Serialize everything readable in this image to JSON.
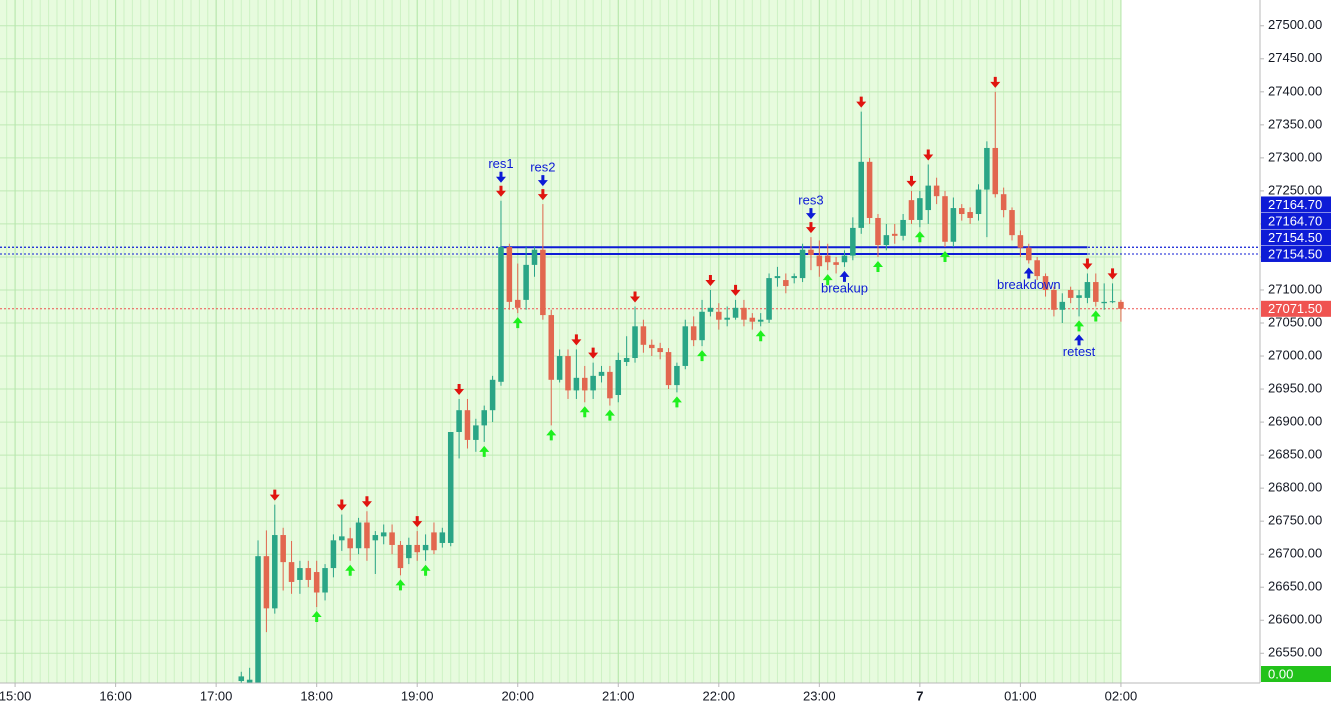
{
  "chart_data": {
    "type": "candlestick",
    "up_color": "#2aa586",
    "down_color": "#e2674f",
    "xlim": [
      -9,
      743
    ],
    "ylim": [
      26505,
      27539
    ],
    "xticks": [
      {
        "value": 0,
        "label": "15:00"
      },
      {
        "value": 60,
        "label": "16:00"
      },
      {
        "value": 120,
        "label": "17:00"
      },
      {
        "value": 180,
        "label": "18:00"
      },
      {
        "value": 240,
        "label": "19:00"
      },
      {
        "value": 300,
        "label": "20:00"
      },
      {
        "value": 360,
        "label": "21:00"
      },
      {
        "value": 420,
        "label": "22:00"
      },
      {
        "value": 480,
        "label": "23:00"
      },
      {
        "value": 540,
        "label": "7",
        "bold": true
      },
      {
        "value": 600,
        "label": "01:00"
      },
      {
        "value": 660,
        "label": "02:00"
      }
    ],
    "yticks": [
      {
        "value": 26550,
        "label": "26550.00"
      },
      {
        "value": 26600,
        "label": "26600.00"
      },
      {
        "value": 26650,
        "label": "26650.00"
      },
      {
        "value": 26700,
        "label": "26700.00"
      },
      {
        "value": 26750,
        "label": "26750.00"
      },
      {
        "value": 26800,
        "label": "26800.00"
      },
      {
        "value": 26850,
        "label": "26850.00"
      },
      {
        "value": 26900,
        "label": "26900.00"
      },
      {
        "value": 26950,
        "label": "26950.00"
      },
      {
        "value": 27000,
        "label": "27000.00"
      },
      {
        "value": 27050,
        "label": "27050.00"
      },
      {
        "value": 27100,
        "label": "27100.00"
      },
      {
        "value": 27150,
        "label": "27150.00"
      },
      {
        "value": 27200,
        "label": "27200.00"
      },
      {
        "value": 27250,
        "label": "27250.00"
      },
      {
        "value": 27300,
        "label": "27300.00"
      },
      {
        "value": 27350,
        "label": "27350.00"
      },
      {
        "value": 27400,
        "label": "27400.00"
      },
      {
        "value": 27450,
        "label": "27450.00"
      },
      {
        "value": 27500,
        "label": "27500.00"
      }
    ],
    "grid": true,
    "x": [
      135,
      140,
      145,
      150,
      155,
      160,
      165,
      170,
      175,
      180,
      185,
      190,
      195,
      200,
      205,
      210,
      215,
      220,
      225,
      230,
      235,
      240,
      245,
      250,
      255,
      260,
      265,
      270,
      275,
      280,
      285,
      290,
      295,
      300,
      305,
      310,
      315,
      320,
      325,
      330,
      335,
      340,
      345,
      350,
      355,
      360,
      365,
      370,
      375,
      380,
      385,
      390,
      395,
      400,
      405,
      410,
      415,
      420,
      425,
      430,
      435,
      440,
      445,
      450,
      455,
      460,
      465,
      470,
      475,
      480,
      485,
      490,
      495,
      500,
      505,
      510,
      515,
      520,
      525,
      530,
      535,
      540,
      545,
      550,
      555,
      560,
      565,
      570,
      575,
      580,
      585,
      590,
      595,
      600,
      605,
      610,
      615,
      620,
      625,
      630,
      635,
      640,
      645,
      650,
      655,
      660
    ],
    "open": [
      26508,
      26505,
      26505,
      26697,
      26618,
      26729,
      26688,
      26661,
      26679,
      26673,
      26642,
      26679,
      26721,
      26724,
      26709,
      26748,
      26721,
      26727,
      26733,
      26714,
      26694,
      26714,
      26706,
      26733,
      26717,
      26717,
      26885,
      26918,
      26873,
      26895,
      26918,
      26961,
      27165,
      27085,
      27085,
      27138,
      27161,
      27062,
      26964,
      27000,
      26948,
      26967,
      26948,
      26970,
      26976,
      26941,
      26991,
      26997,
      27045,
      27017,
      27012,
      27006,
      26956,
      26985,
      27045,
      27024,
      27067,
      27067,
      27055,
      27058,
      27073,
      27058,
      27052,
      27055,
      27118,
      27115,
      27118,
      27118,
      27161,
      27152,
      27152,
      27142,
      27142,
      27152,
      27194,
      27294,
      27209,
      27168,
      27185,
      27182,
      27236,
      27206,
      27221,
      27258,
      27242,
      27173,
      27224,
      27218,
      27215,
      27252,
      27315,
      27245,
      27221,
      27183,
      27164,
      27145,
      27121,
      27100,
      27070,
      27100,
      27088,
      27088,
      27112,
      27080,
      27082,
      27082
    ],
    "high": [
      26522,
      26528,
      26721,
      26736,
      26775,
      26740,
      26720,
      26690,
      26690,
      26690,
      26685,
      26730,
      26760,
      26740,
      26755,
      26765,
      26735,
      26745,
      26745,
      26720,
      26725,
      26735,
      26730,
      26748,
      26740,
      26885,
      26935,
      26935,
      26905,
      26925,
      26970,
      27235,
      27170,
      27140,
      27165,
      27165,
      27230,
      27070,
      27010,
      27010,
      27010,
      26985,
      26990,
      26985,
      26985,
      27005,
      27030,
      27075,
      27055,
      27025,
      27020,
      27012,
      26990,
      27055,
      27060,
      27085,
      27100,
      27080,
      27075,
      27085,
      27085,
      27065,
      27065,
      27125,
      27135,
      27125,
      27125,
      27170,
      27180,
      27175,
      27170,
      27150,
      27160,
      27210,
      27370,
      27300,
      27215,
      27200,
      27200,
      27215,
      27250,
      27250,
      27290,
      27270,
      27250,
      27240,
      27230,
      27225,
      27260,
      27325,
      27400,
      27255,
      27225,
      27190,
      27170,
      27150,
      27125,
      27105,
      27095,
      27105,
      27100,
      27125,
      27125,
      27110,
      27110,
      27085
    ],
    "low": [
      26500,
      26495,
      26490,
      26582,
      26610,
      26645,
      26640,
      26640,
      26650,
      26620,
      26630,
      26665,
      26705,
      26690,
      26700,
      26690,
      26670,
      26715,
      26700,
      26668,
      26685,
      26690,
      26690,
      26700,
      26710,
      26712,
      26845,
      26860,
      26855,
      26870,
      26900,
      26955,
      27070,
      27065,
      27070,
      27120,
      27055,
      26895,
      26960,
      26935,
      26935,
      26930,
      26935,
      26960,
      26925,
      26930,
      26985,
      26990,
      27005,
      27000,
      26995,
      26950,
      26945,
      26980,
      27015,
      27015,
      27060,
      27040,
      27045,
      27055,
      27045,
      27040,
      27045,
      27050,
      27105,
      27095,
      27110,
      27112,
      27130,
      27120,
      27130,
      27125,
      27135,
      27145,
      27185,
      27200,
      27150,
      27160,
      27170,
      27175,
      27200,
      27195,
      27200,
      27230,
      27165,
      27165,
      27205,
      27200,
      27205,
      27180,
      27240,
      27210,
      27175,
      27150,
      27140,
      27115,
      27090,
      27060,
      27050,
      27080,
      27060,
      27080,
      27075,
      27070,
      27080,
      27052
    ],
    "close": [
      26515,
      26510,
      26697,
      26618,
      26729,
      26688,
      26658,
      26679,
      26661,
      26642,
      26679,
      26721,
      26727,
      26709,
      26748,
      26709,
      26729,
      26733,
      26714,
      26679,
      26714,
      26703,
      26714,
      26706,
      26733,
      26885,
      26918,
      26873,
      26895,
      26918,
      26964,
      27165,
      27082,
      27073,
      27138,
      27161,
      27062,
      26964,
      27000,
      26948,
      26967,
      26948,
      26970,
      26976,
      26936,
      26994,
      26997,
      27045,
      27017,
      27012,
      27006,
      26956,
      26985,
      27045,
      27024,
      27067,
      27073,
      27055,
      27058,
      27073,
      27055,
      27052,
      27055,
      27118,
      27121,
      27106,
      27121,
      27161,
      27153,
      27136,
      27142,
      27138,
      27152,
      27194,
      27294,
      27209,
      27168,
      27183,
      27182,
      27206,
      27206,
      27239,
      27258,
      27242,
      27173,
      27224,
      27215,
      27209,
      27252,
      27315,
      27245,
      27221,
      27183,
      27164,
      27145,
      27121,
      27100,
      27070,
      27082,
      27088,
      27092,
      27112,
      27082,
      27082,
      27083,
      27071.5
    ],
    "down_signals": {
      "color": "#e0140f",
      "x": [
        155,
        195,
        210,
        240,
        265,
        290,
        315,
        335,
        345,
        370,
        415,
        430,
        475,
        505,
        535,
        545,
        585,
        640,
        655
      ]
    },
    "up_signals": {
      "color": "#1ef01e",
      "x": [
        180,
        200,
        230,
        245,
        280,
        300,
        320,
        340,
        355,
        395,
        410,
        445,
        485,
        515,
        540,
        555,
        635,
        645
      ]
    },
    "annotation_color": "#0d1bd6",
    "annotations": [
      {
        "text": "res1",
        "x": 290,
        "position": "above"
      },
      {
        "text": "res2",
        "x": 315,
        "position": "above"
      },
      {
        "text": "res3",
        "x": 475,
        "position": "above"
      },
      {
        "text": "breakup",
        "x": 495,
        "position": "below"
      },
      {
        "text": "breakdown",
        "x": 605,
        "position": "below"
      },
      {
        "text": "retest",
        "x": 635,
        "position": "below"
      }
    ],
    "level_lines": [
      {
        "value": 27164.7,
        "start": 290,
        "end": 640,
        "color": "#0d1bd6"
      },
      {
        "value": 27154.5,
        "start": 290,
        "end": 640,
        "color": "#0d1bd6"
      }
    ],
    "price_labels": [
      {
        "value": 27164.7,
        "label": "27164.70",
        "color": "#0d1bd6",
        "dotted": true
      },
      {
        "value": 27164.7,
        "label": "27164.70",
        "color": "#0d1bd6",
        "dotted": true
      },
      {
        "value": 27154.5,
        "label": "27154.50",
        "color": "#0d1bd6",
        "dotted": true
      },
      {
        "value": 27154.5,
        "label": "27154.50",
        "color": "#0d1bd6",
        "dotted": true
      },
      {
        "value": 27071.5,
        "label": "27071.50",
        "color": "#ef5350",
        "dotted": true
      },
      {
        "value": 0,
        "label": "0.00",
        "color": "#22c21a",
        "dotted": false
      }
    ]
  }
}
